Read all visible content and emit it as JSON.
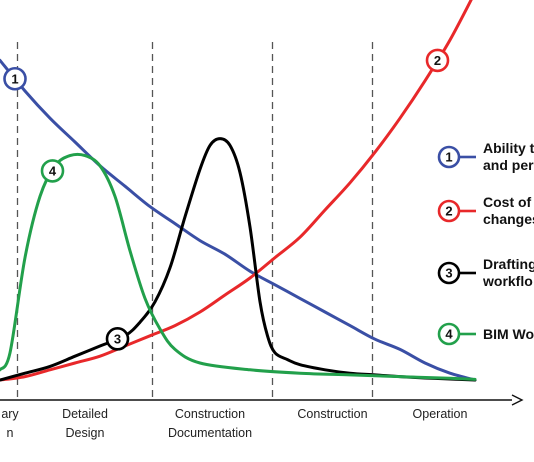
{
  "chart_data": {
    "type": "line",
    "title": "",
    "xlabel": "",
    "ylabel": "",
    "phases": [
      {
        "lines": [
          "ary",
          "n"
        ],
        "x": [
          0.02,
          0.02
        ]
      },
      {
        "lines": [
          "Detailed",
          "Design"
        ],
        "x": [
          0.17,
          0.17
        ]
      },
      {
        "lines": [
          "Construction",
          "Documentation"
        ],
        "x": [
          0.42,
          0.42
        ]
      },
      {
        "lines": [
          "Construction"
        ],
        "x": [
          0.665
        ]
      },
      {
        "lines": [
          "Operation"
        ],
        "x": [
          0.88
        ]
      }
    ],
    "phase_boundaries": [
      0.035,
      0.305,
      0.545,
      0.745
    ],
    "series": [
      {
        "id": "1",
        "color": "#3a4fa5",
        "x": [
          0.0,
          0.05,
          0.1,
          0.15,
          0.2,
          0.25,
          0.3,
          0.35,
          0.4,
          0.45,
          0.5,
          0.55,
          0.6,
          0.65,
          0.7,
          0.75,
          0.8,
          0.85,
          0.9,
          0.95
        ],
        "values": [
          0.94,
          0.85,
          0.77,
          0.7,
          0.63,
          0.57,
          0.51,
          0.46,
          0.41,
          0.37,
          0.32,
          0.28,
          0.24,
          0.2,
          0.16,
          0.12,
          0.09,
          0.05,
          0.02,
          0.0
        ]
      },
      {
        "id": "2",
        "color": "#e8282a",
        "x": [
          0.0,
          0.05,
          0.1,
          0.15,
          0.2,
          0.25,
          0.3,
          0.35,
          0.4,
          0.45,
          0.5,
          0.55,
          0.6,
          0.65,
          0.7,
          0.75,
          0.8,
          0.85,
          0.9,
          0.95
        ],
        "values": [
          0.0,
          0.01,
          0.03,
          0.05,
          0.07,
          0.1,
          0.13,
          0.16,
          0.2,
          0.25,
          0.3,
          0.36,
          0.42,
          0.5,
          0.58,
          0.67,
          0.77,
          0.88,
          1.0,
          1.14
        ]
      },
      {
        "id": "3",
        "color": "#000000",
        "x": [
          0.0,
          0.05,
          0.1,
          0.15,
          0.2,
          0.25,
          0.28,
          0.31,
          0.34,
          0.37,
          0.4,
          0.42,
          0.44,
          0.46,
          0.48,
          0.5,
          0.52,
          0.535,
          0.55,
          0.575,
          0.6,
          0.65,
          0.7,
          0.75,
          0.8,
          0.85,
          0.9,
          0.95
        ],
        "values": [
          0.0,
          0.02,
          0.04,
          0.07,
          0.1,
          0.13,
          0.17,
          0.23,
          0.33,
          0.48,
          0.62,
          0.69,
          0.71,
          0.69,
          0.61,
          0.45,
          0.23,
          0.13,
          0.08,
          0.06,
          0.045,
          0.03,
          0.02,
          0.015,
          0.01,
          0.006,
          0.003,
          0.0
        ]
      },
      {
        "id": "4",
        "color": "#22a04b",
        "x": [
          0.0,
          0.02,
          0.05,
          0.08,
          0.11,
          0.14,
          0.17,
          0.2,
          0.23,
          0.26,
          0.29,
          0.32,
          0.35,
          0.4,
          0.5,
          0.6,
          0.7,
          0.8,
          0.9,
          0.95
        ],
        "values": [
          0.03,
          0.08,
          0.36,
          0.54,
          0.63,
          0.66,
          0.66,
          0.63,
          0.54,
          0.38,
          0.24,
          0.15,
          0.09,
          0.05,
          0.03,
          0.02,
          0.015,
          0.01,
          0.005,
          0.002
        ]
      }
    ],
    "markers": [
      {
        "series": "1",
        "label": "1",
        "x": 0.03
      },
      {
        "series": "2",
        "label": "2",
        "x": 0.875
      },
      {
        "series": "3",
        "label": "3",
        "x": 0.235
      },
      {
        "series": "4",
        "label": "4",
        "x": 0.105
      }
    ],
    "legend": {
      "placement": "right",
      "items": [
        {
          "series": "1",
          "label": "1",
          "color": "#3a4fa5",
          "lines": [
            "Ability t",
            "and per"
          ]
        },
        {
          "series": "2",
          "label": "2",
          "color": "#e8282a",
          "lines": [
            "Cost of c",
            "changes"
          ]
        },
        {
          "series": "3",
          "label": "3",
          "color": "#000000",
          "lines": [
            "Drafting",
            "workflo"
          ]
        },
        {
          "series": "4",
          "label": "4",
          "color": "#22a04b",
          "lines": [
            "BIM Wo"
          ]
        }
      ]
    },
    "grid": false
  }
}
